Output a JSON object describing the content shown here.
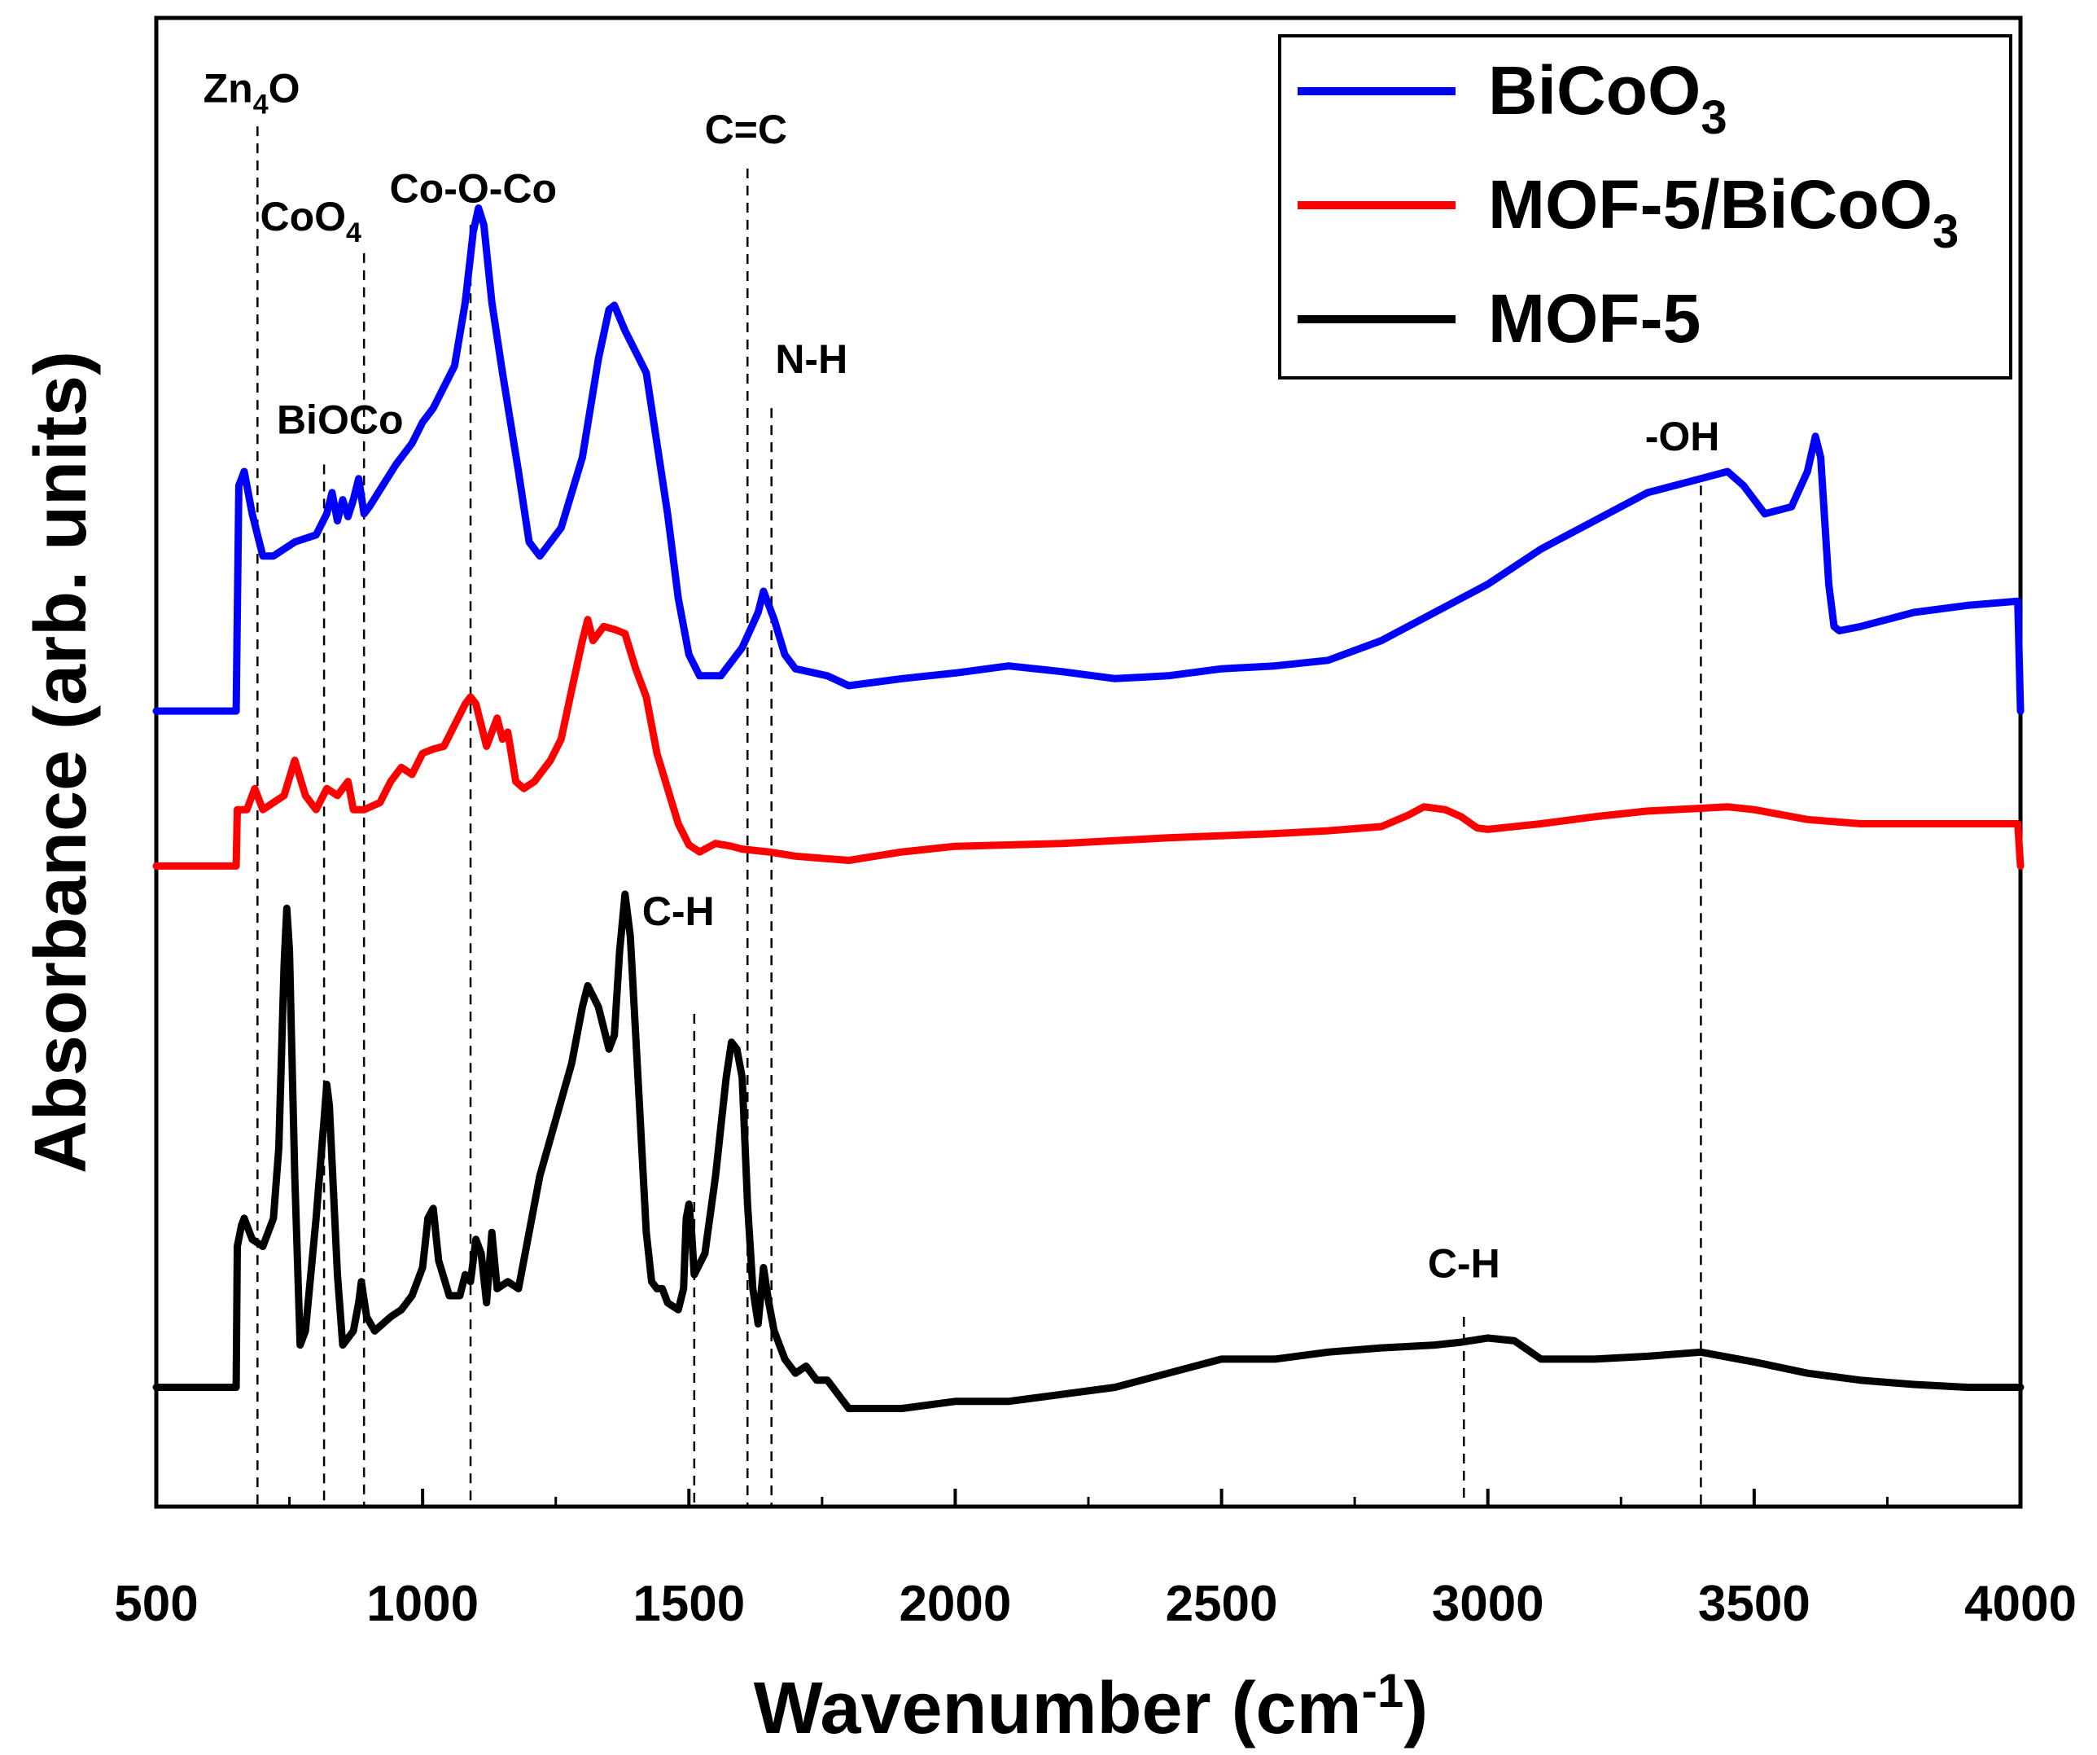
{
  "chart_data": {
    "type": "line",
    "title": "",
    "xlabel_main": "Wavenumber (cm",
    "xlabel_sup": "-1",
    "xlabel_end": ")",
    "ylabel": "Absorbance (arb. units)",
    "xlim": [
      500,
      4000
    ],
    "ylim": [
      0,
      100
    ],
    "xticks": [
      500,
      1000,
      1500,
      2000,
      2500,
      3000,
      3500,
      4000
    ],
    "yticks_shown": false,
    "legend_position": "top-right",
    "series": [
      {
        "name": "BiCoO3",
        "legend_main": "BiCoO",
        "legend_sub": "3",
        "legend_tail": "",
        "color": "#0000ff",
        "points": [
          [
            500,
            53
          ],
          [
            640,
            53
          ],
          [
            650,
            53
          ],
          [
            655,
            69
          ],
          [
            665,
            70
          ],
          [
            680,
            67
          ],
          [
            700,
            64
          ],
          [
            720,
            64
          ],
          [
            760,
            65
          ],
          [
            800,
            65.5
          ],
          [
            820,
            67
          ],
          [
            830,
            68.5
          ],
          [
            840,
            66.5
          ],
          [
            850,
            68
          ],
          [
            860,
            66.8
          ],
          [
            870,
            68
          ],
          [
            880,
            69.5
          ],
          [
            890,
            67
          ],
          [
            900,
            67.5
          ],
          [
            950,
            70.5
          ],
          [
            980,
            72
          ],
          [
            1000,
            73.5
          ],
          [
            1020,
            74.5
          ],
          [
            1040,
            76
          ],
          [
            1060,
            77.5
          ],
          [
            1080,
            82
          ],
          [
            1095,
            87
          ],
          [
            1105,
            88.7
          ],
          [
            1115,
            87.5
          ],
          [
            1130,
            82
          ],
          [
            1150,
            77
          ],
          [
            1180,
            70
          ],
          [
            1200,
            65
          ],
          [
            1220,
            64
          ],
          [
            1260,
            66
          ],
          [
            1300,
            71
          ],
          [
            1330,
            78
          ],
          [
            1350,
            81.5
          ],
          [
            1360,
            81.8
          ],
          [
            1380,
            80
          ],
          [
            1400,
            78.5
          ],
          [
            1420,
            77
          ],
          [
            1440,
            72
          ],
          [
            1460,
            67
          ],
          [
            1480,
            61
          ],
          [
            1500,
            57
          ],
          [
            1520,
            55.5
          ],
          [
            1560,
            55.5
          ],
          [
            1600,
            57.5
          ],
          [
            1630,
            60
          ],
          [
            1640,
            61.5
          ],
          [
            1660,
            59.5
          ],
          [
            1680,
            57
          ],
          [
            1700,
            56
          ],
          [
            1760,
            55.5
          ],
          [
            1800,
            54.8
          ],
          [
            1900,
            55.3
          ],
          [
            2000,
            55.7
          ],
          [
            2100,
            56.2
          ],
          [
            2200,
            55.8
          ],
          [
            2300,
            55.3
          ],
          [
            2400,
            55.5
          ],
          [
            2500,
            56
          ],
          [
            2600,
            56.2
          ],
          [
            2700,
            56.6
          ],
          [
            2800,
            58
          ],
          [
            2900,
            60
          ],
          [
            3000,
            62
          ],
          [
            3100,
            64.5
          ],
          [
            3200,
            66.5
          ],
          [
            3300,
            68.5
          ],
          [
            3400,
            69.5
          ],
          [
            3450,
            70
          ],
          [
            3480,
            69
          ],
          [
            3520,
            67
          ],
          [
            3570,
            67.5
          ],
          [
            3600,
            70
          ],
          [
            3615,
            72.5
          ],
          [
            3625,
            71
          ],
          [
            3640,
            62
          ],
          [
            3650,
            59
          ],
          [
            3660,
            58.7
          ],
          [
            3700,
            59
          ],
          [
            3800,
            60
          ],
          [
            3900,
            60.5
          ],
          [
            3995,
            60.8
          ],
          [
            4000,
            53
          ]
        ]
      },
      {
        "name": "MOF-5/BiCoO3",
        "legend_main": "MOF-5/BiCoO",
        "legend_sub": "3",
        "legend_tail": "",
        "color": "#ff0000",
        "points": [
          [
            500,
            42
          ],
          [
            640,
            42
          ],
          [
            650,
            42
          ],
          [
            652,
            46
          ],
          [
            670,
            46
          ],
          [
            685,
            47.5
          ],
          [
            700,
            46
          ],
          [
            720,
            46.5
          ],
          [
            740,
            47
          ],
          [
            760,
            49.5
          ],
          [
            780,
            47
          ],
          [
            800,
            46
          ],
          [
            820,
            47.5
          ],
          [
            840,
            47
          ],
          [
            860,
            48
          ],
          [
            870,
            46
          ],
          [
            890,
            46
          ],
          [
            920,
            46.5
          ],
          [
            940,
            48
          ],
          [
            960,
            49
          ],
          [
            980,
            48.5
          ],
          [
            1000,
            50
          ],
          [
            1020,
            50.3
          ],
          [
            1040,
            50.5
          ],
          [
            1060,
            52
          ],
          [
            1080,
            53.5
          ],
          [
            1090,
            54
          ],
          [
            1100,
            53.5
          ],
          [
            1120,
            50.5
          ],
          [
            1140,
            52.5
          ],
          [
            1150,
            51
          ],
          [
            1160,
            51.5
          ],
          [
            1175,
            48
          ],
          [
            1190,
            47.5
          ],
          [
            1210,
            48
          ],
          [
            1240,
            49.5
          ],
          [
            1260,
            51
          ],
          [
            1280,
            54.5
          ],
          [
            1300,
            58
          ],
          [
            1310,
            59.5
          ],
          [
            1320,
            58
          ],
          [
            1340,
            59
          ],
          [
            1360,
            58.8
          ],
          [
            1380,
            58.5
          ],
          [
            1400,
            56
          ],
          [
            1420,
            54
          ],
          [
            1440,
            50
          ],
          [
            1460,
            47.5
          ],
          [
            1480,
            45
          ],
          [
            1500,
            43.5
          ],
          [
            1520,
            43
          ],
          [
            1550,
            43.6
          ],
          [
            1580,
            43.4
          ],
          [
            1600,
            43.2
          ],
          [
            1650,
            43
          ],
          [
            1700,
            42.7
          ],
          [
            1800,
            42.4
          ],
          [
            1900,
            43
          ],
          [
            2000,
            43.4
          ],
          [
            2200,
            43.6
          ],
          [
            2400,
            44
          ],
          [
            2600,
            44.3
          ],
          [
            2700,
            44.5
          ],
          [
            2800,
            44.8
          ],
          [
            2850,
            45.6
          ],
          [
            2880,
            46.2
          ],
          [
            2920,
            46
          ],
          [
            2950,
            45.5
          ],
          [
            2980,
            44.7
          ],
          [
            3000,
            44.6
          ],
          [
            3100,
            45
          ],
          [
            3200,
            45.5
          ],
          [
            3300,
            45.9
          ],
          [
            3400,
            46.1
          ],
          [
            3450,
            46.2
          ],
          [
            3500,
            46
          ],
          [
            3600,
            45.3
          ],
          [
            3700,
            45
          ],
          [
            3800,
            45
          ],
          [
            3900,
            45
          ],
          [
            3995,
            45
          ],
          [
            4000,
            42
          ]
        ]
      },
      {
        "name": "MOF-5",
        "legend_main": "MOF-5",
        "legend_sub": "",
        "legend_tail": "",
        "color": "#000000",
        "points": [
          [
            500,
            5
          ],
          [
            640,
            5
          ],
          [
            650,
            5
          ],
          [
            652,
            15
          ],
          [
            660,
            16.5
          ],
          [
            665,
            17
          ],
          [
            670,
            16.5
          ],
          [
            680,
            15.5
          ],
          [
            700,
            15
          ],
          [
            720,
            17
          ],
          [
            730,
            22
          ],
          [
            740,
            35
          ],
          [
            745,
            39
          ],
          [
            750,
            36
          ],
          [
            760,
            20
          ],
          [
            770,
            8
          ],
          [
            780,
            9
          ],
          [
            800,
            17
          ],
          [
            815,
            24
          ],
          [
            820,
            26.5
          ],
          [
            825,
            25
          ],
          [
            840,
            13
          ],
          [
            850,
            8
          ],
          [
            870,
            9
          ],
          [
            880,
            11
          ],
          [
            885,
            12.5
          ],
          [
            895,
            10
          ],
          [
            910,
            9
          ],
          [
            940,
            10
          ],
          [
            960,
            10.5
          ],
          [
            980,
            11.5
          ],
          [
            1000,
            13.5
          ],
          [
            1010,
            17
          ],
          [
            1020,
            17.7
          ],
          [
            1030,
            14
          ],
          [
            1050,
            11.5
          ],
          [
            1070,
            11.5
          ],
          [
            1080,
            13
          ],
          [
            1090,
            12.5
          ],
          [
            1100,
            15.5
          ],
          [
            1110,
            14.5
          ],
          [
            1120,
            11
          ],
          [
            1130,
            16
          ],
          [
            1140,
            12
          ],
          [
            1160,
            12.5
          ],
          [
            1180,
            12
          ],
          [
            1200,
            16
          ],
          [
            1220,
            20
          ],
          [
            1250,
            24
          ],
          [
            1280,
            28
          ],
          [
            1300,
            32
          ],
          [
            1310,
            33.5
          ],
          [
            1330,
            32
          ],
          [
            1350,
            29
          ],
          [
            1360,
            30
          ],
          [
            1370,
            36
          ],
          [
            1380,
            40
          ],
          [
            1390,
            37
          ],
          [
            1400,
            30
          ],
          [
            1420,
            16
          ],
          [
            1430,
            12.5
          ],
          [
            1440,
            12
          ],
          [
            1450,
            12
          ],
          [
            1460,
            11
          ],
          [
            1480,
            10.5
          ],
          [
            1490,
            12
          ],
          [
            1495,
            17
          ],
          [
            1500,
            18
          ],
          [
            1505,
            16
          ],
          [
            1510,
            13
          ],
          [
            1530,
            14.5
          ],
          [
            1550,
            20
          ],
          [
            1570,
            27
          ],
          [
            1580,
            29.5
          ],
          [
            1590,
            29
          ],
          [
            1600,
            27
          ],
          [
            1610,
            18
          ],
          [
            1620,
            12
          ],
          [
            1630,
            9.5
          ],
          [
            1640,
            13.5
          ],
          [
            1650,
            11
          ],
          [
            1660,
            9
          ],
          [
            1680,
            7
          ],
          [
            1700,
            6
          ],
          [
            1720,
            6.5
          ],
          [
            1740,
            5.5
          ],
          [
            1760,
            5.5
          ],
          [
            1800,
            3.5
          ],
          [
            1900,
            3.5
          ],
          [
            2000,
            4
          ],
          [
            2100,
            4
          ],
          [
            2200,
            4.5
          ],
          [
            2300,
            5
          ],
          [
            2400,
            6
          ],
          [
            2500,
            7
          ],
          [
            2600,
            7
          ],
          [
            2700,
            7.5
          ],
          [
            2800,
            7.8
          ],
          [
            2900,
            8
          ],
          [
            2950,
            8.2
          ],
          [
            3000,
            8.5
          ],
          [
            3050,
            8.3
          ],
          [
            3100,
            7
          ],
          [
            3200,
            7
          ],
          [
            3300,
            7.2
          ],
          [
            3400,
            7.5
          ],
          [
            3500,
            6.8
          ],
          [
            3600,
            6
          ],
          [
            3700,
            5.5
          ],
          [
            3800,
            5.2
          ],
          [
            3900,
            5
          ],
          [
            4000,
            5
          ]
        ]
      }
    ],
    "annotations": [
      {
        "label": "Zn",
        "sub": "4",
        "tail": "O",
        "x": 690,
        "y_top": 94.5,
        "y_bottom": 0,
        "text_y": 96.2,
        "text_x": 679
      },
      {
        "label": "CoO",
        "sub": "4",
        "tail": "",
        "x": 890,
        "y_top": 85.5,
        "y_bottom": 0,
        "text_y": 87.1,
        "text_x": 790
      },
      {
        "label": "Co-O-Co",
        "sub": "",
        "tail": "",
        "x": 1090,
        "y_top": 87.5,
        "y_bottom": 0,
        "text_y": 89.1,
        "text_x": 1095
      },
      {
        "label": "C=C",
        "sub": "",
        "tail": "",
        "x": 1610,
        "y_top": 91.5,
        "y_bottom": 0,
        "text_y": 93.3,
        "text_x": 1607
      },
      {
        "label": "BiOCo",
        "sub": "",
        "tail": "",
        "x": 815,
        "y_top": 70.5,
        "y_bottom": 0,
        "text_y": 72.7,
        "text_x": 845
      },
      {
        "label": "N-H",
        "sub": "",
        "tail": "",
        "x": 1655,
        "y_top": 74.5,
        "y_bottom": 0,
        "text_y": 77,
        "text_x": 1730
      },
      {
        "label": "-OH",
        "sub": "",
        "tail": "",
        "x": 3400,
        "y_top": 69,
        "y_bottom": 0,
        "text_y": 71.5,
        "text_x": 3365
      },
      {
        "label": "C-H",
        "sub": "",
        "tail": "",
        "x": 1510,
        "y_top": 31.5,
        "y_bottom": 0,
        "text_y": 37.8,
        "text_x": 1480
      },
      {
        "label": "C-H",
        "sub": "",
        "tail": "",
        "x": 2955,
        "y_top": 10,
        "y_bottom": 0,
        "text_y": 12.8,
        "text_x": 2955
      }
    ]
  }
}
